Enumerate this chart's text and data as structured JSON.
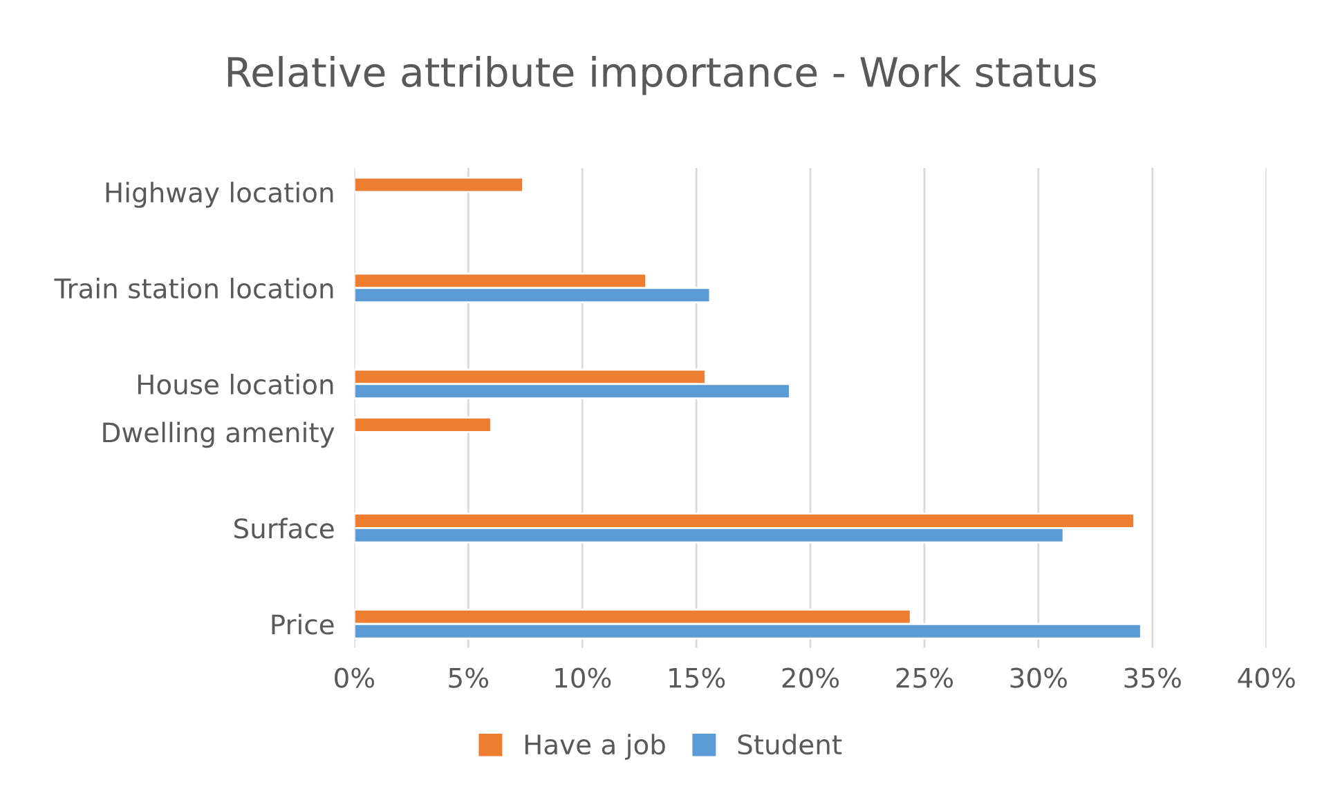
{
  "chart_data": {
    "type": "bar",
    "orientation": "horizontal",
    "title": "Relative attribute importance - Work status",
    "categories": [
      "Highway location",
      null,
      "Train station location",
      null,
      "House location",
      "Dwelling amenity",
      null,
      "Surface",
      null,
      "Price"
    ],
    "series": [
      {
        "name": "Have a job",
        "color": "#ed7d31",
        "values": [
          7.4,
          null,
          12.8,
          null,
          15.4,
          6.0,
          null,
          34.2,
          null,
          24.4
        ]
      },
      {
        "name": "Student",
        "color": "#5b9bd5",
        "values": [
          null,
          null,
          15.6,
          null,
          19.1,
          null,
          null,
          31.1,
          null,
          34.5
        ]
      }
    ],
    "xlim": [
      0,
      40
    ],
    "xticks": [
      {
        "value": 0,
        "label": "0%"
      },
      {
        "value": 5,
        "label": "5%"
      },
      {
        "value": 10,
        "label": "10%"
      },
      {
        "value": 15,
        "label": "15%"
      },
      {
        "value": 20,
        "label": "20%"
      },
      {
        "value": 25,
        "label": "25%"
      },
      {
        "value": 30,
        "label": "30%"
      },
      {
        "value": 35,
        "label": "35%"
      },
      {
        "value": 40,
        "label": "40%"
      }
    ],
    "grid": "x",
    "legend": "bottom"
  }
}
